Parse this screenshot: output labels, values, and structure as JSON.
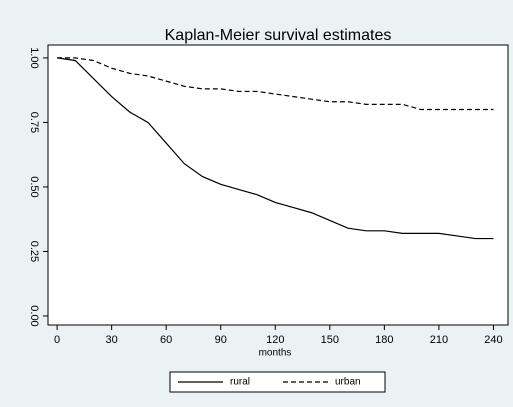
{
  "chart_data": {
    "type": "line",
    "title": "Kaplan-Meier survival estimates",
    "x_label": "months",
    "x": [
      0,
      10,
      20,
      30,
      40,
      50,
      60,
      70,
      80,
      90,
      100,
      110,
      120,
      130,
      140,
      150,
      160,
      170,
      180,
      190,
      200,
      210,
      220,
      230,
      240
    ],
    "series": [
      {
        "name": "rural",
        "color": "#000000",
        "dash": "solid",
        "values": [
          1.0,
          0.99,
          0.92,
          0.85,
          0.79,
          0.75,
          0.67,
          0.59,
          0.54,
          0.51,
          0.49,
          0.47,
          0.44,
          0.42,
          0.4,
          0.37,
          0.34,
          0.33,
          0.33,
          0.32,
          0.32,
          0.32,
          0.31,
          0.3,
          0.3
        ]
      },
      {
        "name": "urban",
        "color": "#000000",
        "dash": "dashed",
        "values": [
          1.0,
          1.0,
          0.99,
          0.96,
          0.94,
          0.93,
          0.91,
          0.89,
          0.88,
          0.88,
          0.87,
          0.87,
          0.86,
          0.85,
          0.84,
          0.83,
          0.83,
          0.82,
          0.82,
          0.82,
          0.8,
          0.8,
          0.8,
          0.8,
          0.8
        ]
      }
    ],
    "xlim": [
      -5,
      248
    ],
    "xticks": [
      0,
      30,
      60,
      90,
      120,
      150,
      180,
      210,
      240
    ],
    "ylim": [
      -0.035,
      1.05
    ],
    "yticks": [
      {
        "value": 0,
        "label": "0.00"
      },
      0.25,
      {
        "value": 0.5,
        "label": "0.50"
      },
      0.75,
      {
        "value": 1,
        "label": "1.00"
      }
    ],
    "grid": false,
    "legend": "bottom"
  }
}
